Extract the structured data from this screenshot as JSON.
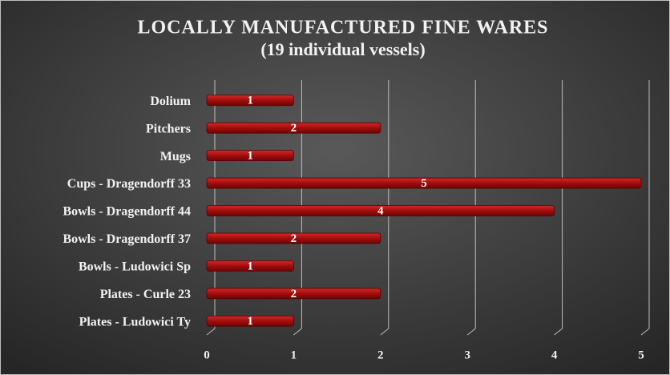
{
  "chart_data": {
    "type": "bar",
    "orientation": "horizontal",
    "title": "LOCALLY MANUFACTURED FINE WARES",
    "subtitle": "(19 individual vessels)",
    "categories": [
      "Dolium",
      "Pitchers",
      "Mugs",
      "Cups - Dragendorff 33",
      "Bowls - Dragendorff 44",
      "Bowls - Dragendorff 37",
      "Bowls - Ludowici Sp",
      "Plates - Curle 23",
      "Plates - Ludowici Ty"
    ],
    "values": [
      1,
      2,
      1,
      5,
      4,
      2,
      1,
      2,
      1
    ],
    "color": "#a30d0d",
    "xlim": [
      0,
      5
    ],
    "xticks": [
      0,
      1,
      2,
      3,
      4,
      5
    ],
    "grid": true
  }
}
